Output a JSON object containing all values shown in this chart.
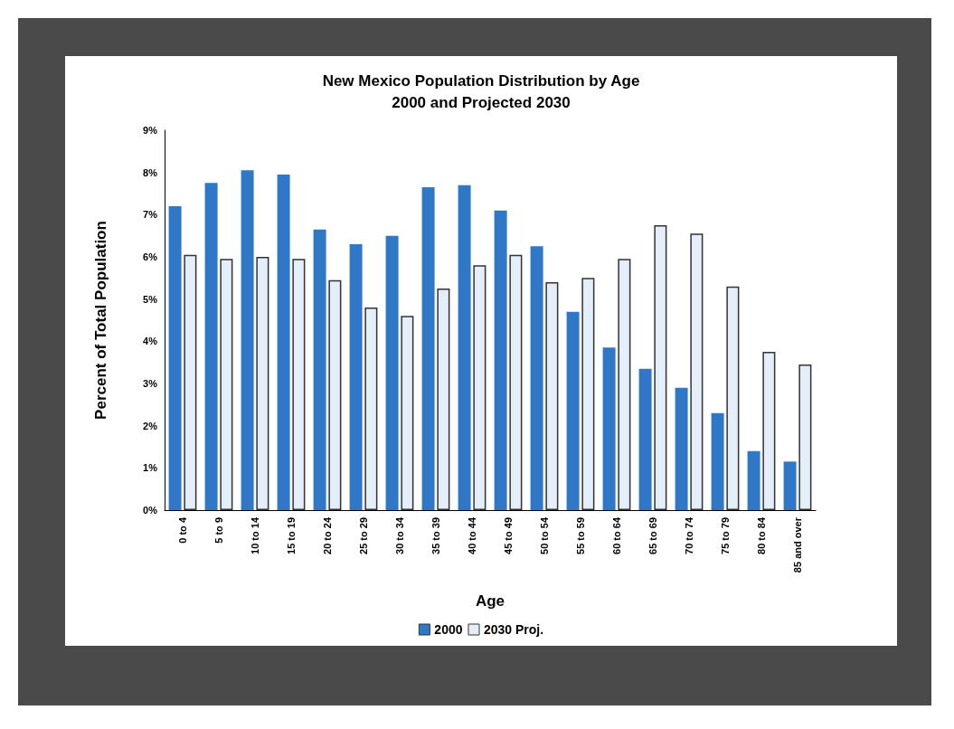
{
  "chart_data": {
    "type": "bar",
    "title": "New Mexico Population Distribution by Age\n2000 and Projected 2030",
    "xlabel": "Age",
    "ylabel": "Percent of Total Population",
    "categories": [
      "0 to 4",
      "5 to 9",
      "10 to 14",
      "15 to 19",
      "20 to 24",
      "25 to 29",
      "30 to 34",
      "35 to 39",
      "40 to 44",
      "45 to 49",
      "50 to 54",
      "55 to 59",
      "60 to 64",
      "65 to 69",
      "70 to 74",
      "75 to 79",
      "80 to 84",
      "85 and over"
    ],
    "series": [
      {
        "name": "2000",
        "color": "#2f78c8",
        "values": [
          7.2,
          7.75,
          8.05,
          7.95,
          6.65,
          6.3,
          6.5,
          7.65,
          7.7,
          7.1,
          6.25,
          4.7,
          3.85,
          3.35,
          2.9,
          2.3,
          1.4,
          1.15
        ]
      },
      {
        "name": "2030 Proj.",
        "color": "#e4eef8",
        "values": [
          6.05,
          5.95,
          6.0,
          5.95,
          5.45,
          4.8,
          4.6,
          5.25,
          5.8,
          6.05,
          5.4,
          5.5,
          5.95,
          6.75,
          6.55,
          5.3,
          3.75,
          3.45
        ]
      }
    ],
    "ylim": [
      0,
      9
    ],
    "yticks": [
      {
        "value": 0,
        "label": "0%"
      },
      {
        "value": 1,
        "label": "1%"
      },
      {
        "value": 2,
        "label": "2%"
      },
      {
        "value": 3,
        "label": "3%"
      },
      {
        "value": 4,
        "label": "4%"
      },
      {
        "value": 5,
        "label": "5%"
      },
      {
        "value": 6,
        "label": "6%"
      },
      {
        "value": 7,
        "label": "7%"
      },
      {
        "value": 8,
        "label": "8%"
      },
      {
        "value": 9,
        "label": "9%"
      }
    ],
    "grid": false,
    "legend": "bottom"
  }
}
